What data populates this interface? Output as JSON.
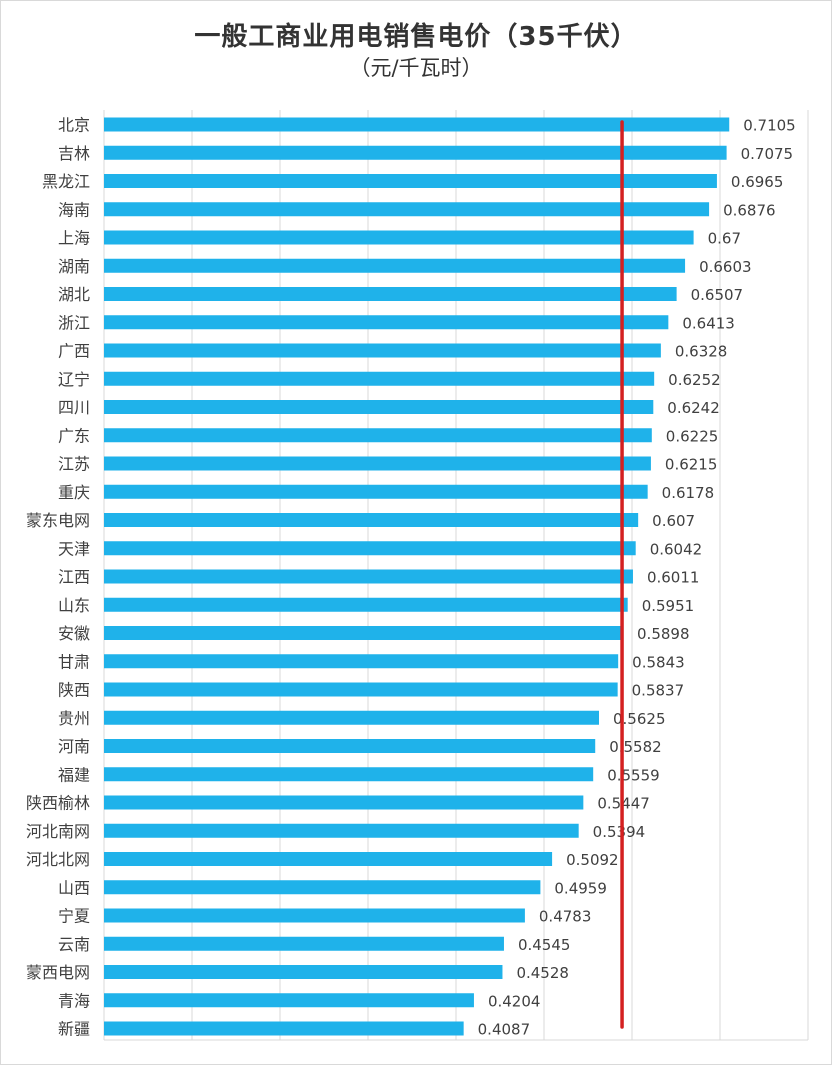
{
  "chart_data": {
    "type": "bar",
    "orientation": "horizontal",
    "title": "一般工商业用电销售电价（35千伏）",
    "subtitle": "（元/千瓦时）",
    "categories": [
      "北京",
      "吉林",
      "黑龙江",
      "海南",
      "上海",
      "湖南",
      "湖北",
      "浙江",
      "广西",
      "辽宁",
      "四川",
      "广东",
      "江苏",
      "重庆",
      "蒙东电网",
      "天津",
      "江西",
      "山东",
      "安徽",
      "甘肃",
      "陕西",
      "贵州",
      "河南",
      "福建",
      "陕西榆林",
      "河北南网",
      "河北北网",
      "山西",
      "宁夏",
      "云南",
      "蒙西电网",
      "青海",
      "新疆"
    ],
    "values": [
      0.7105,
      0.7075,
      0.6965,
      0.6876,
      0.67,
      0.6603,
      0.6507,
      0.6413,
      0.6328,
      0.6252,
      0.6242,
      0.6225,
      0.6215,
      0.6178,
      0.607,
      0.6042,
      0.6011,
      0.5951,
      0.5898,
      0.5843,
      0.5837,
      0.5625,
      0.5582,
      0.5559,
      0.5447,
      0.5394,
      0.5092,
      0.4959,
      0.4783,
      0.4545,
      0.4528,
      0.4204,
      0.4087
    ],
    "data_labels": [
      "0.7105",
      "0.7075",
      "0.6965",
      "0.6876",
      "0.67",
      "0.6603",
      "0.6507",
      "0.6413",
      "0.6328",
      "0.6252",
      "0.6242",
      "0.6225",
      "0.6215",
      "0.6178",
      "0.607",
      "0.6042",
      "0.6011",
      "0.5951",
      "0.5898",
      "0.5843",
      "0.5837",
      "0.5625",
      "0.5582",
      "0.5559",
      "0.5447",
      "0.5394",
      "0.5092",
      "0.4959",
      "0.4783",
      "0.4545",
      "0.4528",
      "0.4204",
      "0.4087"
    ],
    "xlim": [
      0,
      0.8
    ],
    "x_gridline_step": 0.1,
    "grid": true,
    "tick_labels_visible": false,
    "reference_line_value": 0.5887,
    "colors": {
      "bar": "#1fb2ea",
      "reference_line": "#d42020",
      "grid": "#d9d9d9",
      "text": "#404040"
    }
  }
}
